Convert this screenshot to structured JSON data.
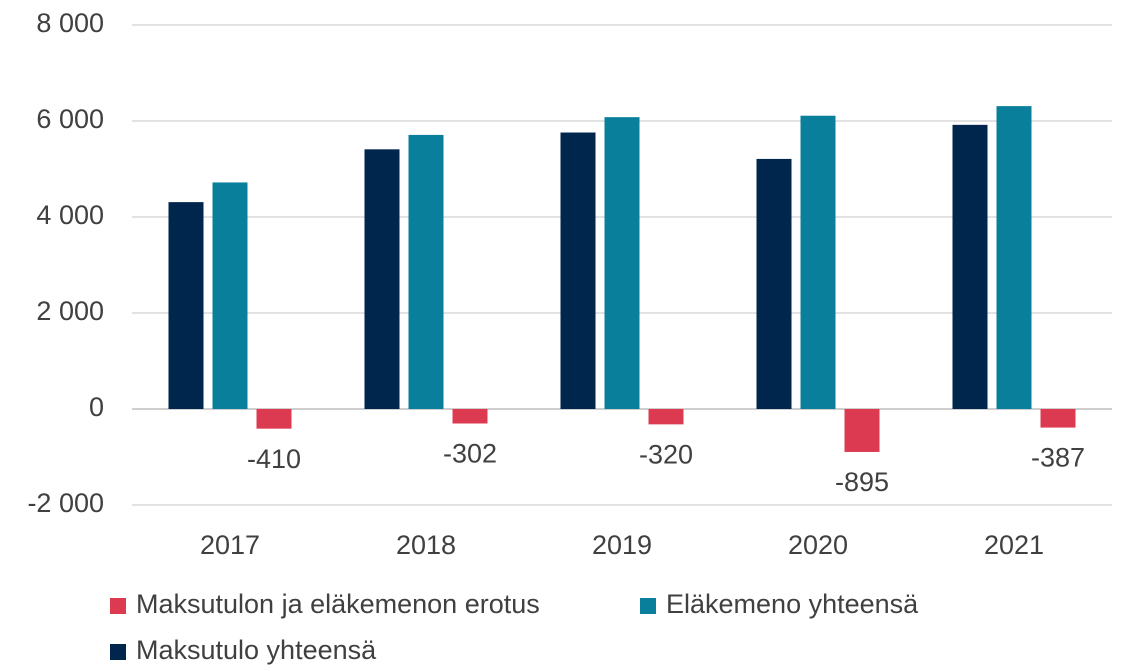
{
  "chart_data": {
    "type": "bar",
    "categories": [
      "2017",
      "2018",
      "2019",
      "2020",
      "2021"
    ],
    "series": [
      {
        "name": "Maksutulo yhteensä",
        "color": "#00264d",
        "values": [
          4310,
          5410,
          5760,
          5210,
          5920
        ]
      },
      {
        "name": "Eläkemeno yhteensä",
        "color": "#0a7f9c",
        "values": [
          4720,
          5710,
          6080,
          6110,
          6310
        ]
      },
      {
        "name": "Maksutulon ja eläkemenon erotus",
        "color": "#dc3a50",
        "values": [
          -410,
          -302,
          -320,
          -895,
          -387
        ],
        "data_labels": true
      }
    ],
    "legend_order": [
      2,
      1,
      0
    ],
    "ylim": [
      -2000,
      8000
    ],
    "yticks": [
      {
        "value": -2000,
        "label": "-2 000"
      },
      0,
      {
        "value": 2000,
        "label": "2 000"
      },
      {
        "value": 4000,
        "label": "4 000"
      },
      {
        "value": 6000,
        "label": "6 000"
      },
      {
        "value": 8000,
        "label": "8 000"
      }
    ],
    "grid": true
  }
}
